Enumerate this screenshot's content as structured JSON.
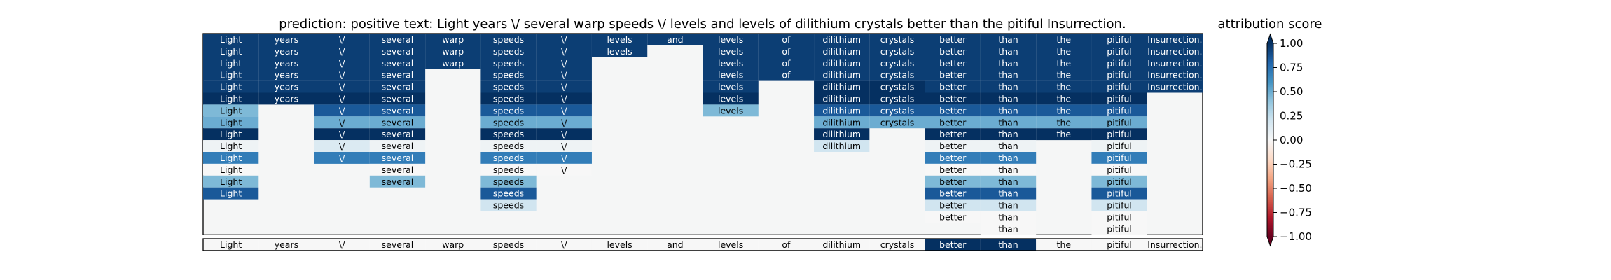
{
  "chart_data": {
    "type": "heatmap",
    "title": "prediction:  positive     text:  Light years \\/ several warp speeds \\/ levels and levels of dilithium crystals better than the pitiful Insurrection.",
    "columns": [
      "Light",
      "years",
      "\\/",
      "several",
      "warp",
      "speeds",
      "\\/",
      "levels",
      "and",
      "levels",
      "of",
      "dilithium",
      "crystals",
      "better",
      "than",
      "the",
      "pitiful",
      "Insurrection."
    ],
    "background_color": "#f5f6f6",
    "grid_rows": [
      {
        "cells": {
          "0": [
            "Light",
            0.95
          ],
          "1": [
            "years",
            0.95
          ],
          "2": [
            "\\/",
            0.95
          ],
          "3": [
            "several",
            0.95
          ],
          "4": [
            "warp",
            0.95
          ],
          "5": [
            "speeds",
            0.95
          ],
          "6": [
            "\\/",
            0.95
          ],
          "7": [
            "levels",
            0.95
          ],
          "8": [
            "and",
            0.95
          ],
          "9": [
            "levels",
            0.95
          ],
          "10": [
            "of",
            0.95
          ],
          "11": [
            "dilithium",
            0.95
          ],
          "12": [
            "crystals",
            0.95
          ],
          "13": [
            "better",
            0.95
          ],
          "14": [
            "than",
            0.95
          ],
          "15": [
            "the",
            0.95
          ],
          "16": [
            "pitiful",
            0.95
          ],
          "17": [
            "Insurrection.",
            0.95
          ]
        }
      },
      {
        "cells": {
          "0": [
            "Light",
            0.95
          ],
          "1": [
            "years",
            0.95
          ],
          "2": [
            "\\/",
            0.95
          ],
          "3": [
            "several",
            0.95
          ],
          "4": [
            "warp",
            0.95
          ],
          "5": [
            "speeds",
            0.95
          ],
          "6": [
            "\\/",
            0.95
          ],
          "7": [
            "levels",
            0.95
          ],
          "9": [
            "levels",
            0.95
          ],
          "10": [
            "of",
            0.95
          ],
          "11": [
            "dilithium",
            0.95
          ],
          "12": [
            "crystals",
            0.95
          ],
          "13": [
            "better",
            0.95
          ],
          "14": [
            "than",
            0.95
          ],
          "15": [
            "the",
            0.95
          ],
          "16": [
            "pitiful",
            0.95
          ],
          "17": [
            "Insurrection.",
            0.95
          ]
        }
      },
      {
        "cells": {
          "0": [
            "Light",
            0.95
          ],
          "1": [
            "years",
            0.95
          ],
          "2": [
            "\\/",
            0.95
          ],
          "3": [
            "several",
            0.95
          ],
          "4": [
            "warp",
            0.95
          ],
          "5": [
            "speeds",
            0.95
          ],
          "6": [
            "\\/",
            0.95
          ],
          "9": [
            "levels",
            0.95
          ],
          "10": [
            "of",
            0.95
          ],
          "11": [
            "dilithium",
            0.95
          ],
          "12": [
            "crystals",
            0.95
          ],
          "13": [
            "better",
            0.95
          ],
          "14": [
            "than",
            0.95
          ],
          "15": [
            "the",
            0.95
          ],
          "16": [
            "pitiful",
            0.95
          ],
          "17": [
            "Insurrection.",
            0.95
          ]
        }
      },
      {
        "cells": {
          "0": [
            "Light",
            0.95
          ],
          "1": [
            "years",
            0.95
          ],
          "2": [
            "\\/",
            0.95
          ],
          "3": [
            "several",
            0.95
          ],
          "5": [
            "speeds",
            0.95
          ],
          "6": [
            "\\/",
            0.95
          ],
          "9": [
            "levels",
            0.95
          ],
          "10": [
            "of",
            0.95
          ],
          "11": [
            "dilithium",
            0.95
          ],
          "12": [
            "crystals",
            0.95
          ],
          "13": [
            "better",
            0.95
          ],
          "14": [
            "than",
            0.95
          ],
          "15": [
            "the",
            0.95
          ],
          "16": [
            "pitiful",
            0.95
          ],
          "17": [
            "Insurrection.",
            0.95
          ]
        }
      },
      {
        "cells": {
          "0": [
            "Light",
            0.95
          ],
          "1": [
            "years",
            0.95
          ],
          "2": [
            "\\/",
            0.95
          ],
          "3": [
            "several",
            0.95
          ],
          "5": [
            "speeds",
            0.95
          ],
          "6": [
            "\\/",
            0.95
          ],
          "9": [
            "levels",
            0.95
          ],
          "11": [
            "dilithium",
            1.0
          ],
          "12": [
            "crystals",
            1.0
          ],
          "13": [
            "better",
            0.95
          ],
          "14": [
            "than",
            0.95
          ],
          "15": [
            "the",
            0.95
          ],
          "16": [
            "pitiful",
            0.95
          ],
          "17": [
            "Insurrection.",
            0.95
          ]
        }
      },
      {
        "cells": {
          "0": [
            "Light",
            1.0
          ],
          "1": [
            "years",
            1.0
          ],
          "2": [
            "\\/",
            1.0
          ],
          "3": [
            "several",
            1.0
          ],
          "5": [
            "speeds",
            1.0
          ],
          "6": [
            "\\/",
            1.0
          ],
          "9": [
            "levels",
            1.0
          ],
          "11": [
            "dilithium",
            1.0
          ],
          "12": [
            "crystals",
            1.0
          ],
          "13": [
            "better",
            1.0
          ],
          "14": [
            "than",
            1.0
          ],
          "15": [
            "the",
            1.0
          ],
          "16": [
            "pitiful",
            1.0
          ]
        }
      },
      {
        "cells": {
          "0": [
            "Light",
            0.45
          ],
          "2": [
            "\\/",
            0.85
          ],
          "3": [
            "several",
            0.85
          ],
          "5": [
            "speeds",
            0.85
          ],
          "6": [
            "\\/",
            0.85
          ],
          "9": [
            "levels",
            0.45
          ],
          "11": [
            "dilithium",
            0.85
          ],
          "12": [
            "crystals",
            0.85
          ],
          "13": [
            "better",
            0.85
          ],
          "14": [
            "than",
            0.85
          ],
          "15": [
            "the",
            0.85
          ],
          "16": [
            "pitiful",
            0.85
          ]
        }
      },
      {
        "cells": {
          "0": [
            "Light",
            0.5
          ],
          "2": [
            "\\/",
            0.5
          ],
          "3": [
            "several",
            0.5
          ],
          "5": [
            "speeds",
            0.5
          ],
          "6": [
            "\\/",
            0.5
          ],
          "11": [
            "dilithium",
            0.5
          ],
          "12": [
            "crystals",
            0.5
          ],
          "13": [
            "better",
            0.5
          ],
          "14": [
            "than",
            0.5
          ],
          "15": [
            "the",
            0.5
          ],
          "16": [
            "pitiful",
            0.5
          ]
        }
      },
      {
        "cells": {
          "0": [
            "Light",
            1.0
          ],
          "2": [
            "\\/",
            1.0
          ],
          "3": [
            "several",
            1.0
          ],
          "5": [
            "speeds",
            1.0
          ],
          "6": [
            "\\/",
            1.0
          ],
          "11": [
            "dilithium",
            1.0
          ],
          "13": [
            "better",
            1.0
          ],
          "14": [
            "than",
            1.0
          ],
          "15": [
            "the",
            1.0
          ],
          "16": [
            "pitiful",
            1.0
          ]
        }
      },
      {
        "cells": {
          "0": [
            "Light",
            0.05
          ],
          "2": [
            "\\/",
            0.15
          ],
          "3": [
            "several",
            0.05
          ],
          "5": [
            "speeds",
            0.05
          ],
          "6": [
            "\\/",
            0.05
          ],
          "11": [
            "dilithium",
            0.2
          ],
          "13": [
            "better",
            0.05
          ],
          "14": [
            "than",
            0.05
          ],
          "16": [
            "pitiful",
            0.05
          ]
        }
      },
      {
        "cells": {
          "0": [
            "Light",
            0.7
          ],
          "2": [
            "\\/",
            0.7
          ],
          "3": [
            "several",
            0.7
          ],
          "5": [
            "speeds",
            0.7
          ],
          "6": [
            "\\/",
            0.7
          ],
          "13": [
            "better",
            0.7
          ],
          "14": [
            "than",
            0.7
          ],
          "16": [
            "pitiful",
            0.7
          ]
        }
      },
      {
        "cells": {
          "0": [
            "Light",
            0.0
          ],
          "3": [
            "several",
            0.0
          ],
          "5": [
            "speeds",
            0.0
          ],
          "6": [
            "\\/",
            0.0
          ],
          "13": [
            "better",
            0.0
          ],
          "14": [
            "than",
            0.0
          ],
          "16": [
            "pitiful",
            0.0
          ]
        }
      },
      {
        "cells": {
          "0": [
            "Light",
            0.45
          ],
          "3": [
            "several",
            0.45
          ],
          "5": [
            "speeds",
            0.45
          ],
          "13": [
            "better",
            0.45
          ],
          "14": [
            "than",
            0.45
          ],
          "16": [
            "pitiful",
            0.45
          ]
        }
      },
      {
        "cells": {
          "0": [
            "Light",
            0.85
          ],
          "5": [
            "speeds",
            0.85
          ],
          "13": [
            "better",
            0.85
          ],
          "14": [
            "than",
            0.85
          ],
          "16": [
            "pitiful",
            0.85
          ]
        }
      },
      {
        "cells": {
          "5": [
            "speeds",
            0.2
          ],
          "13": [
            "better",
            0.2
          ],
          "14": [
            "than",
            0.2
          ],
          "16": [
            "pitiful",
            0.2
          ]
        }
      },
      {
        "cells": {
          "13": [
            "better",
            0.0
          ],
          "14": [
            "than",
            0.0
          ],
          "16": [
            "pitiful",
            0.0
          ]
        }
      },
      {
        "cells": {
          "14": [
            "than",
            0.0
          ],
          "16": [
            "pitiful",
            0.0
          ]
        }
      }
    ],
    "bottom_row": {
      "cells": {
        "0": [
          "Light",
          0.0
        ],
        "1": [
          "years",
          0.0
        ],
        "2": [
          "\\/",
          0.0
        ],
        "3": [
          "several",
          0.0
        ],
        "4": [
          "warp",
          0.0
        ],
        "5": [
          "speeds",
          0.0
        ],
        "6": [
          "\\/",
          0.0
        ],
        "7": [
          "levels",
          0.0
        ],
        "8": [
          "and",
          0.0
        ],
        "9": [
          "levels",
          0.0
        ],
        "10": [
          "of",
          0.0
        ],
        "11": [
          "dilithium",
          0.0
        ],
        "12": [
          "crystals",
          0.0
        ],
        "13": [
          "better",
          1.0
        ],
        "14": [
          "than",
          1.0
        ],
        "15": [
          "the",
          0.0
        ],
        "16": [
          "pitiful",
          0.0
        ],
        "17": [
          "Insurrection.",
          0.0
        ]
      }
    },
    "colorbar": {
      "label": "attribution score",
      "range": [
        -1.0,
        1.0
      ],
      "ticks": [
        1.0,
        0.75,
        0.5,
        0.25,
        0.0,
        -0.25,
        -0.5,
        -0.75,
        -1.0
      ],
      "tick_labels": [
        "1.00",
        "0.75",
        "0.50",
        "0.25",
        "0.00",
        "−0.25",
        "−0.50",
        "−0.75",
        "−1.00"
      ],
      "colormap": "RdBu",
      "stops": [
        "#67001f",
        "#b2182b",
        "#d6604d",
        "#f4a582",
        "#fddbc7",
        "#f7f7f7",
        "#d1e5f0",
        "#92c5de",
        "#4393c3",
        "#2166ac",
        "#053061"
      ]
    }
  }
}
